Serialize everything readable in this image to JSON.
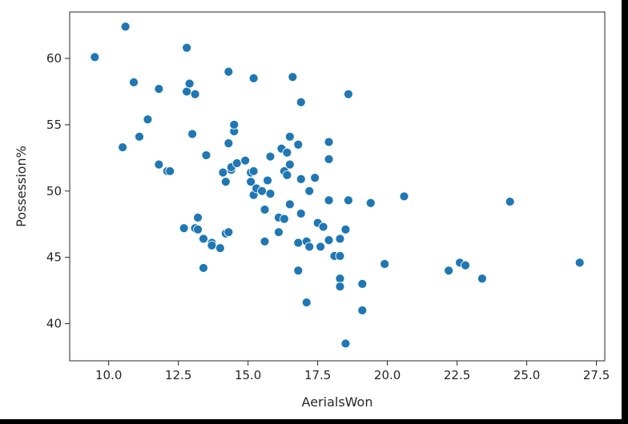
{
  "chart_data": {
    "type": "scatter",
    "xlabel": "AerialsWon",
    "ylabel": "Possession%",
    "xlim": [
      8.6,
      27.8
    ],
    "ylim": [
      37.2,
      63.5
    ],
    "xticks": [
      10.0,
      12.5,
      15.0,
      17.5,
      20.0,
      22.5,
      25.0,
      27.5
    ],
    "xtick_labels": [
      "10.0",
      "12.5",
      "15.0",
      "17.5",
      "20.0",
      "22.5",
      "25.0",
      "27.5"
    ],
    "yticks": [
      40,
      45,
      50,
      55,
      60
    ],
    "ytick_labels": [
      "40",
      "45",
      "50",
      "55",
      "60"
    ],
    "grid": false,
    "marker_color": "#1f77b4",
    "marker_edge_color": "#ffffff",
    "points": [
      [
        9.5,
        60.1
      ],
      [
        10.6,
        62.4
      ],
      [
        10.5,
        53.3
      ],
      [
        10.9,
        58.2
      ],
      [
        11.1,
        54.1
      ],
      [
        11.4,
        55.4
      ],
      [
        11.8,
        57.7
      ],
      [
        11.8,
        52.0
      ],
      [
        12.1,
        51.5
      ],
      [
        12.2,
        51.5
      ],
      [
        12.7,
        47.2
      ],
      [
        12.8,
        60.8
      ],
      [
        12.8,
        57.5
      ],
      [
        12.9,
        58.1
      ],
      [
        13.0,
        54.3
      ],
      [
        13.1,
        57.3
      ],
      [
        13.1,
        47.2
      ],
      [
        13.2,
        48.0
      ],
      [
        13.2,
        47.1
      ],
      [
        13.4,
        46.4
      ],
      [
        13.4,
        44.2
      ],
      [
        13.5,
        52.7
      ],
      [
        13.7,
        46.1
      ],
      [
        13.7,
        45.9
      ],
      [
        14.0,
        45.7
      ],
      [
        14.1,
        51.4
      ],
      [
        14.2,
        50.7
      ],
      [
        14.2,
        46.8
      ],
      [
        14.3,
        59.0
      ],
      [
        14.3,
        53.6
      ],
      [
        14.4,
        51.6
      ],
      [
        14.4,
        51.8
      ],
      [
        14.5,
        54.5
      ],
      [
        14.5,
        55.0
      ],
      [
        14.6,
        52.1
      ],
      [
        14.3,
        46.9
      ],
      [
        14.9,
        52.3
      ],
      [
        15.1,
        50.7
      ],
      [
        15.1,
        51.4
      ],
      [
        15.2,
        58.5
      ],
      [
        15.2,
        51.5
      ],
      [
        15.2,
        49.7
      ],
      [
        15.3,
        50.2
      ],
      [
        15.5,
        50.0
      ],
      [
        15.6,
        46.2
      ],
      [
        15.6,
        48.6
      ],
      [
        15.7,
        50.8
      ],
      [
        15.8,
        52.6
      ],
      [
        15.8,
        49.8
      ],
      [
        16.1,
        48.0
      ],
      [
        16.1,
        46.9
      ],
      [
        16.2,
        53.2
      ],
      [
        16.3,
        51.5
      ],
      [
        16.3,
        47.9
      ],
      [
        16.4,
        51.2
      ],
      [
        16.4,
        52.9
      ],
      [
        16.5,
        54.1
      ],
      [
        16.5,
        52.0
      ],
      [
        16.5,
        49.0
      ],
      [
        16.6,
        58.6
      ],
      [
        16.8,
        53.5
      ],
      [
        16.9,
        56.7
      ],
      [
        16.9,
        50.9
      ],
      [
        16.9,
        48.3
      ],
      [
        16.8,
        46.1
      ],
      [
        16.8,
        44.0
      ],
      [
        17.1,
        46.2
      ],
      [
        17.1,
        41.6
      ],
      [
        17.2,
        45.8
      ],
      [
        17.2,
        50.0
      ],
      [
        17.4,
        51.0
      ],
      [
        17.5,
        47.6
      ],
      [
        17.6,
        45.8
      ],
      [
        17.7,
        47.3
      ],
      [
        17.9,
        53.7
      ],
      [
        17.9,
        52.4
      ],
      [
        17.9,
        49.3
      ],
      [
        17.9,
        46.3
      ],
      [
        18.1,
        45.1
      ],
      [
        18.3,
        46.4
      ],
      [
        18.3,
        45.1
      ],
      [
        18.3,
        43.4
      ],
      [
        18.3,
        42.8
      ],
      [
        18.5,
        47.1
      ],
      [
        18.6,
        57.3
      ],
      [
        18.6,
        49.3
      ],
      [
        18.5,
        38.5
      ],
      [
        19.1,
        43.0
      ],
      [
        19.1,
        41.0
      ],
      [
        19.4,
        49.1
      ],
      [
        19.9,
        44.5
      ],
      [
        20.6,
        49.6
      ],
      [
        22.2,
        44.0
      ],
      [
        22.6,
        44.6
      ],
      [
        22.8,
        44.4
      ],
      [
        23.4,
        43.4
      ],
      [
        24.4,
        49.2
      ],
      [
        26.9,
        44.6
      ]
    ]
  }
}
